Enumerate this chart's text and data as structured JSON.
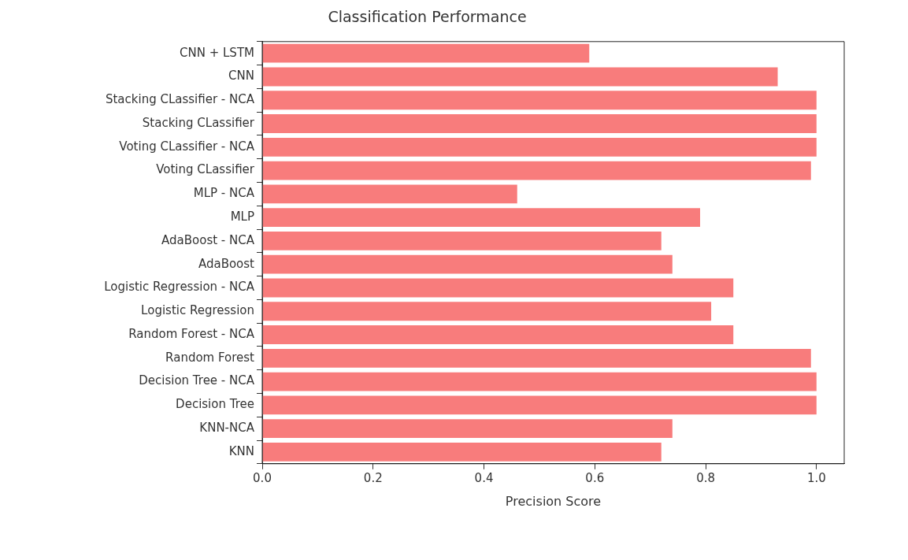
{
  "chart_data": {
    "type": "bar",
    "orientation": "horizontal",
    "title": "Classification Performance",
    "xlabel": "Precision Score",
    "categories": [
      "CNN + LSTM",
      "CNN",
      "Stacking CLassifier - NCA",
      "Stacking CLassifier",
      "Voting CLassifier - NCA",
      "Voting CLassifier",
      "MLP - NCA",
      "MLP",
      "AdaBoost - NCA",
      "AdaBoost",
      "Logistic Regression - NCA",
      "Logistic Regression",
      "Random Forest - NCA",
      "Random Forest",
      "Decision Tree - NCA",
      "Decision Tree",
      "KNN-NCA",
      "KNN"
    ],
    "values": [
      0.59,
      0.93,
      1.0,
      1.0,
      1.0,
      0.99,
      0.46,
      0.79,
      0.72,
      0.74,
      0.85,
      0.81,
      0.85,
      0.99,
      1.0,
      1.0,
      0.74,
      0.72
    ],
    "color": "#f87c7c",
    "xlim": [
      0,
      1.05
    ],
    "xticks": [
      {
        "value": 0,
        "label": "0.0"
      },
      {
        "value": 0.2,
        "label": "0.2"
      },
      {
        "value": 0.4,
        "label": "0.4"
      },
      {
        "value": 0.6,
        "label": "0.6"
      },
      {
        "value": 0.8,
        "label": "0.8"
      },
      {
        "value": 1.0,
        "label": "1.0"
      }
    ],
    "grid": false,
    "legend": false
  }
}
